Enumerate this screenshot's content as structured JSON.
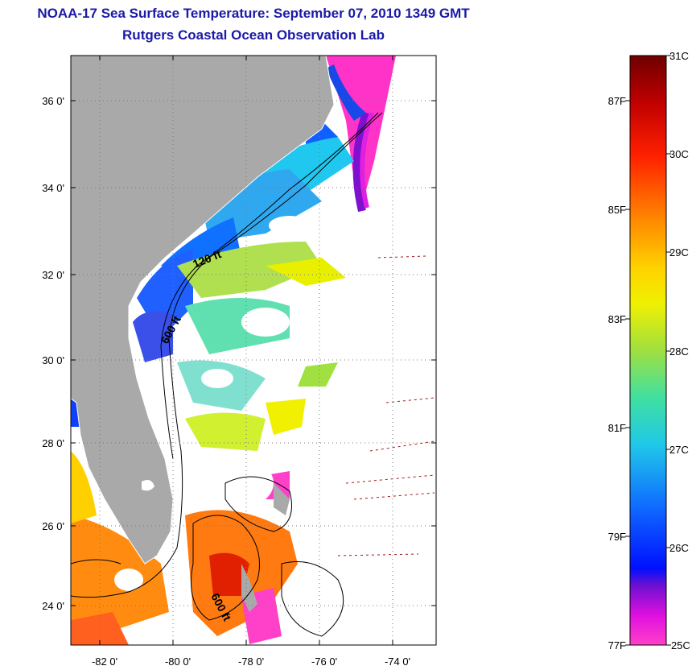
{
  "title": "NOAA-17 Sea Surface Temperature:  September 07, 2010 1349 GMT",
  "subtitle": "Rutgers Coastal Ocean Observation Lab",
  "map": {
    "lat_labels": [
      "36 0'",
      "34 0'",
      "32 0'",
      "30 0'",
      "28 0'",
      "26 0'",
      "24 0'"
    ],
    "lon_labels": [
      "-82 0'",
      "-80 0'",
      "-78 0'",
      "-76 0'",
      "-74 0'"
    ],
    "contour_labels": [
      "120 ft",
      "600 ft",
      "600 ft"
    ],
    "colors": {
      "land": "#a9a9a9",
      "no_data": "#ffffff",
      "grid": "#888888"
    }
  },
  "colorbar": {
    "celsius_labels": [
      "31C",
      "30C",
      "29C",
      "28C",
      "27C",
      "26C",
      "25C"
    ],
    "fahrenheit_labels": [
      "87F",
      "85F",
      "83F",
      "81F",
      "79F",
      "77F"
    ],
    "range_c": [
      25,
      31
    ],
    "gradient": [
      "#7a0000",
      "#d00000",
      "#ff3000",
      "#ff9000",
      "#ffd800",
      "#e8f000",
      "#90e040",
      "#30e0c0",
      "#20b8f0",
      "#1060ff",
      "#0010ff",
      "#7000d0",
      "#e000e0",
      "#ff40c0"
    ]
  }
}
